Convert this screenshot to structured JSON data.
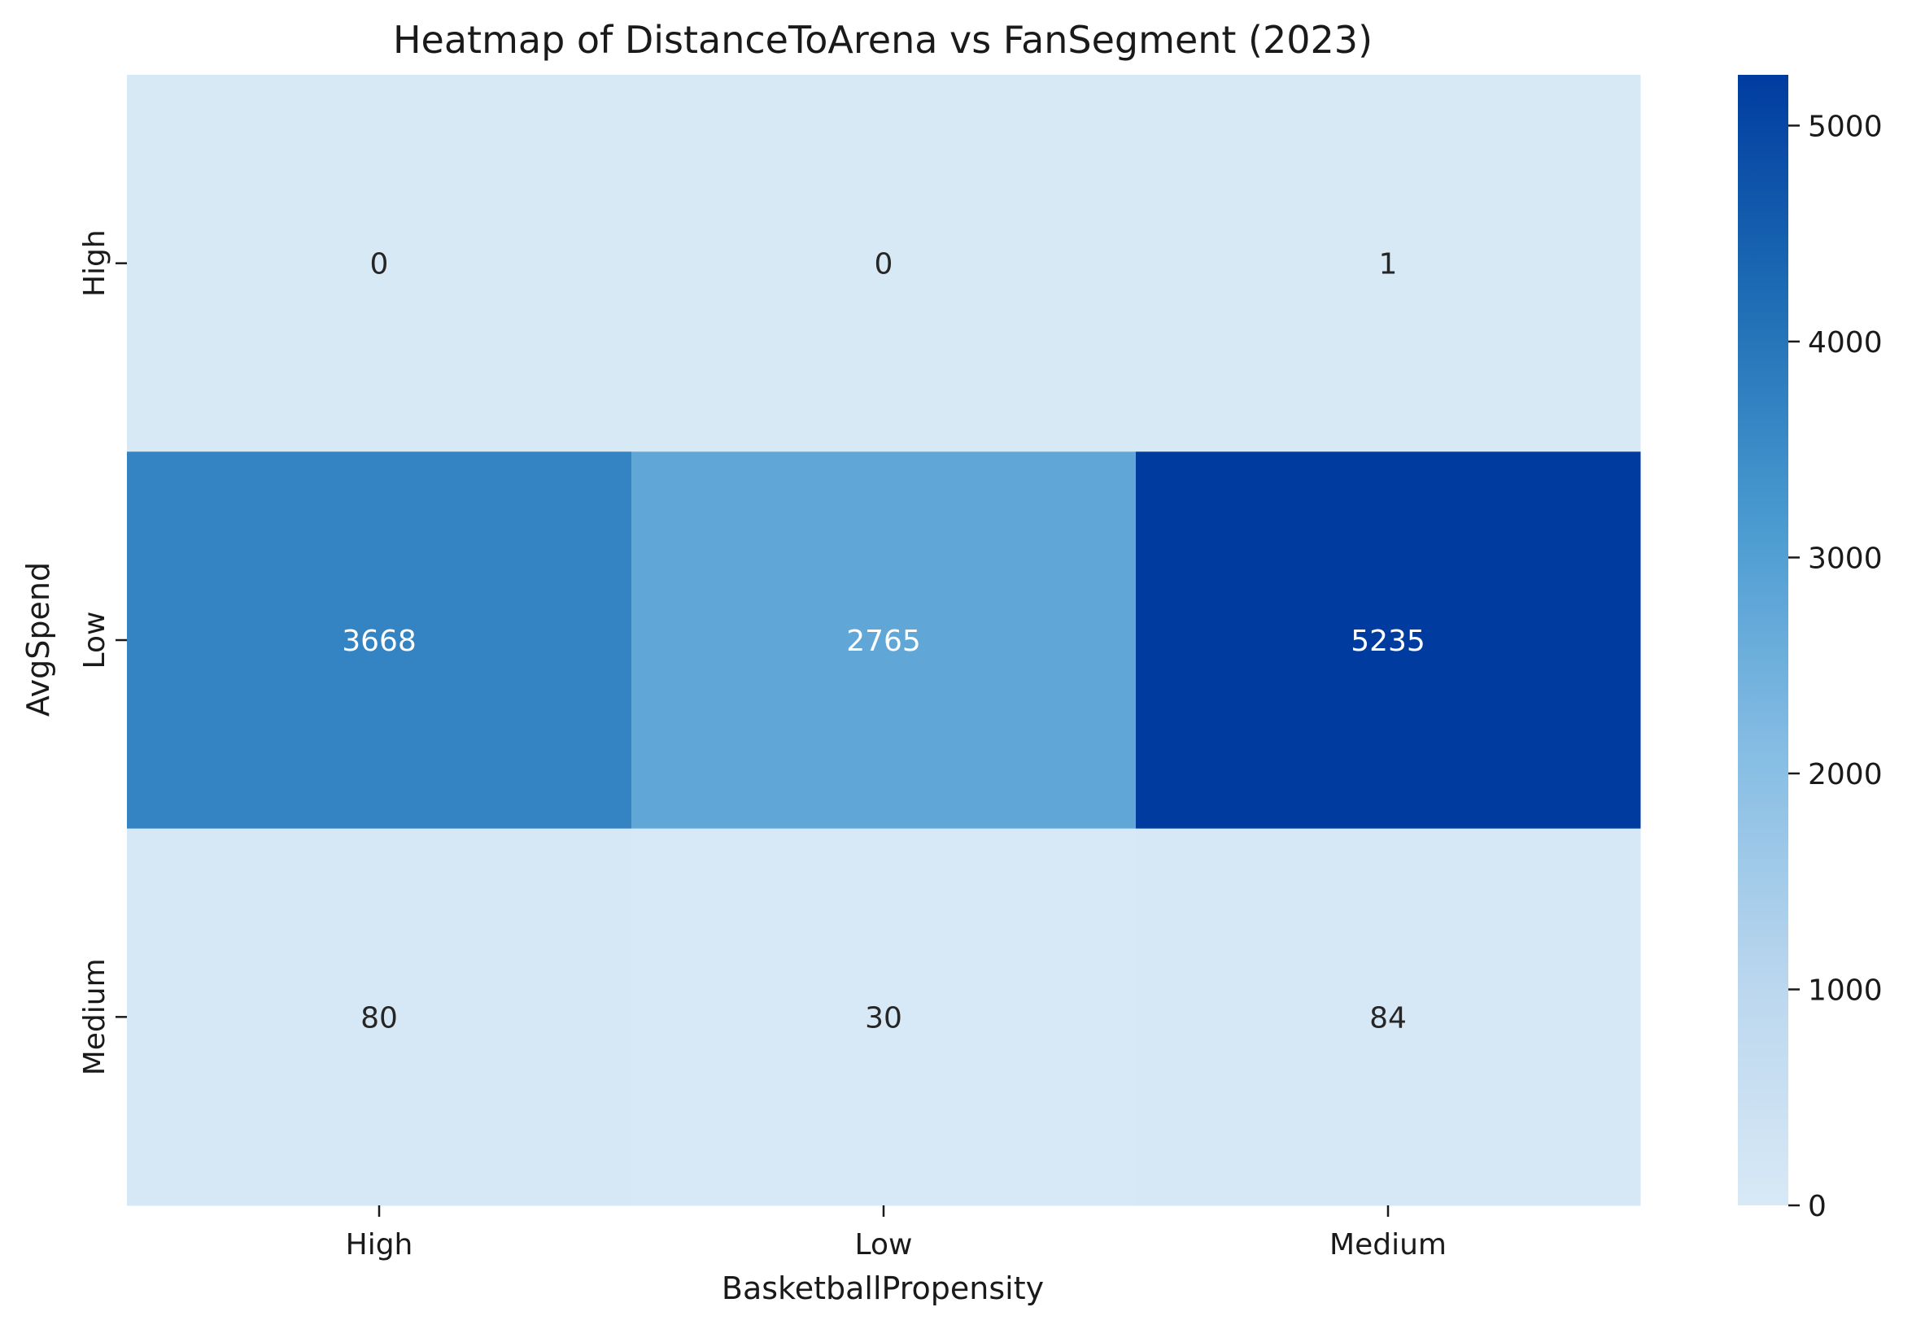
{
  "chart_data": {
    "type": "heatmap",
    "title": "Heatmap of DistanceToArena vs FanSegment (2023)",
    "xlabel": "BasketballPropensity",
    "ylabel": "AvgSpend",
    "x_categories": [
      "High",
      "Low",
      "Medium"
    ],
    "y_categories": [
      "High",
      "Low",
      "Medium"
    ],
    "values": [
      [
        0,
        0,
        1
      ],
      [
        3668,
        2765,
        5235
      ],
      [
        80,
        30,
        84
      ]
    ],
    "colorbar": {
      "min": 0,
      "max": 5235,
      "ticks": [
        0,
        1000,
        2000,
        3000,
        4000,
        5000
      ],
      "tick_labels": [
        "0",
        "1000",
        "2000",
        "3000",
        "4000",
        "5000"
      ],
      "colormap": "Blues",
      "color_low": "#d8e9f6",
      "color_high": "#003c9f"
    },
    "annotation_text_dark": "#262626",
    "annotation_text_light": "#ffffff"
  }
}
